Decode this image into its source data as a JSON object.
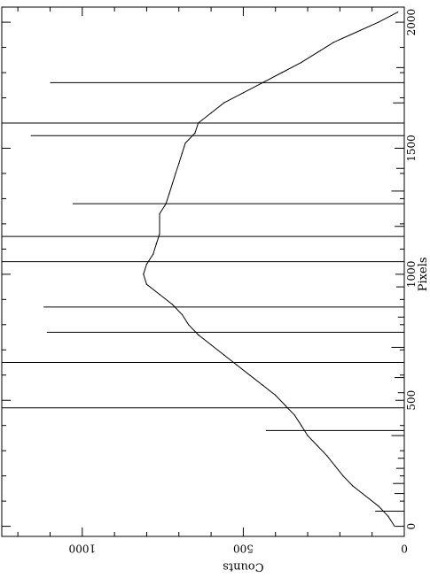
{
  "chart_data": {
    "type": "line",
    "orientation": "rotated-90",
    "title": "",
    "xlabel": "Pixels",
    "ylabel": "Counts",
    "xlim": [
      -40,
      2060
    ],
    "ylim": [
      0,
      1250
    ],
    "x_ticks": [
      0,
      500,
      1000,
      1500,
      2000
    ],
    "x_tick_labels": [
      "0",
      "500",
      "1000",
      "1500",
      "2000"
    ],
    "y_ticks": [
      0,
      500,
      1000
    ],
    "y_tick_labels": [
      "0",
      "500",
      "1000"
    ],
    "grid": false,
    "series": [
      {
        "x": [
          0,
          40,
          80,
          120,
          160,
          200,
          240,
          280,
          320,
          360,
          400,
          440,
          480,
          520,
          560,
          600,
          640,
          680,
          720,
          760,
          800,
          840,
          880,
          920,
          960,
          1000,
          1040,
          1080,
          1120,
          1160,
          1200,
          1240,
          1280,
          1320,
          1360,
          1400,
          1440,
          1480,
          1520,
          1560,
          1600,
          1640,
          1680,
          1720,
          1760,
          1800,
          1840,
          1880,
          1920,
          1960,
          2000,
          2040
        ],
        "y": [
          30,
          50,
          80,
          120,
          160,
          190,
          215,
          240,
          270,
          300,
          320,
          340,
          370,
          400,
          440,
          480,
          520,
          560,
          600,
          640,
          670,
          690,
          720,
          760,
          800,
          810,
          800,
          780,
          770,
          760,
          760,
          760,
          740,
          730,
          720,
          710,
          700,
          690,
          680,
          650,
          640,
          600,
          560,
          500,
          440,
          380,
          320,
          270,
          220,
          150,
          80,
          20
        ]
      }
    ],
    "spikes": [
      {
        "x": 60,
        "y": 90
      },
      {
        "x": 130,
        "y": 30
      },
      {
        "x": 170,
        "y": 35
      },
      {
        "x": 230,
        "y": 25
      },
      {
        "x": 270,
        "y": 20
      },
      {
        "x": 360,
        "y": 40
      },
      {
        "x": 380,
        "y": 430
      },
      {
        "x": 470,
        "y": 1250
      },
      {
        "x": 530,
        "y": 20
      },
      {
        "x": 590,
        "y": 30
      },
      {
        "x": 650,
        "y": 1250
      },
      {
        "x": 710,
        "y": 40
      },
      {
        "x": 770,
        "y": 1110
      },
      {
        "x": 830,
        "y": 20
      },
      {
        "x": 870,
        "y": 1120
      },
      {
        "x": 950,
        "y": 25
      },
      {
        "x": 1050,
        "y": 1250
      },
      {
        "x": 1150,
        "y": 1250
      },
      {
        "x": 1190,
        "y": 30
      },
      {
        "x": 1280,
        "y": 1030
      },
      {
        "x": 1330,
        "y": 40
      },
      {
        "x": 1420,
        "y": 25
      },
      {
        "x": 1500,
        "y": 30
      },
      {
        "x": 1550,
        "y": 1160
      },
      {
        "x": 1600,
        "y": 1250
      },
      {
        "x": 1680,
        "y": 35
      },
      {
        "x": 1760,
        "y": 1100
      },
      {
        "x": 1820,
        "y": 25
      }
    ]
  }
}
